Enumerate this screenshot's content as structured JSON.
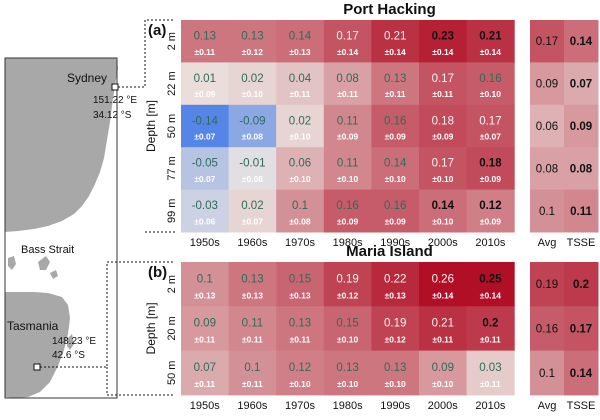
{
  "chart_data": [
    {
      "type": "heatmap",
      "panel_label": "(a)",
      "title": "Port Hacking",
      "ylabel": "Depth [m]",
      "rows": [
        "2 m",
        "22 m",
        "50 m",
        "77 m",
        "99 m"
      ],
      "columns": [
        "1950s",
        "1960s",
        "1970s",
        "1980s",
        "1990s",
        "2000s",
        "2010s"
      ],
      "summary_columns": [
        "Avg",
        "TSSE"
      ],
      "values": [
        [
          "0.13",
          "0.13",
          "0.14",
          "0.17",
          "0.21",
          "0.23",
          "0.21"
        ],
        [
          "0.01",
          "0.02",
          "0.04",
          "0.08",
          "0.13",
          "0.17",
          "0.16"
        ],
        [
          "-0.14",
          "-0.09",
          "0.02",
          "0.11",
          "0.16",
          "0.18",
          "0.17"
        ],
        [
          "-0.05",
          "-0.01",
          "0.06",
          "0.11",
          "0.14",
          "0.17",
          "0.18"
        ],
        [
          "-0.03",
          "0.02",
          "0.1",
          "0.16",
          "0.16",
          "0.14",
          "0.12"
        ]
      ],
      "errors": [
        [
          "±0.11",
          "±0.12",
          "±0.13",
          "±0.14",
          "±0.14",
          "±0.14",
          "±0.14"
        ],
        [
          "±0.09",
          "±0.10",
          "±0.11",
          "±0.11",
          "±0.11",
          "±0.11",
          "±0.10"
        ],
        [
          "±0.07",
          "±0.08",
          "±0.10",
          "±0.09",
          "±0.09",
          "±0.09",
          "±0.07"
        ],
        [
          "±0.07",
          "±0.08",
          "±0.10",
          "±0.10",
          "±0.10",
          "±0.10",
          "±0.09"
        ],
        [
          "±0.06",
          "±0.07",
          "±0.08",
          "±0.09",
          "±0.09",
          "±0.10",
          "±0.09"
        ]
      ],
      "bold": [
        [
          false,
          false,
          false,
          false,
          false,
          true,
          true
        ],
        [
          false,
          false,
          false,
          false,
          false,
          false,
          false
        ],
        [
          false,
          false,
          false,
          false,
          false,
          false,
          false
        ],
        [
          false,
          false,
          false,
          false,
          false,
          false,
          true
        ],
        [
          false,
          false,
          false,
          false,
          false,
          true,
          true
        ]
      ],
      "avg": [
        "0.17",
        "0.09",
        "0.06",
        "0.08",
        "0.1"
      ],
      "tsse": [
        "0.14",
        "0.07",
        "0.09",
        "0.08",
        "0.11"
      ]
    },
    {
      "type": "heatmap",
      "panel_label": "(b)",
      "title": "Maria Island",
      "ylabel": "Depth [m]",
      "rows": [
        "2 m",
        "20 m",
        "50 m"
      ],
      "columns": [
        "1950s",
        "1960s",
        "1970s",
        "1980s",
        "1990s",
        "2000s",
        "2010s"
      ],
      "summary_columns": [
        "Avg",
        "TSSE"
      ],
      "values": [
        [
          "0.1",
          "0.13",
          "0.15",
          "0.19",
          "0.22",
          "0.26",
          "0.25"
        ],
        [
          "0.09",
          "0.11",
          "0.13",
          "0.15",
          "0.19",
          "0.21",
          "0.2"
        ],
        [
          "0.07",
          "0.1",
          "0.12",
          "0.13",
          "0.13",
          "0.09",
          "0.03"
        ]
      ],
      "errors": [
        [
          "±0.13",
          "±0.13",
          "±0.13",
          "±0.12",
          "±0.13",
          "±0.14",
          "±0.14"
        ],
        [
          "±0.11",
          "±0.11",
          "±0.11",
          "±0.10",
          "±0.12",
          "±0.11",
          "±0.11"
        ],
        [
          "±0.11",
          "±0.11",
          "±0.10",
          "±0.10",
          "±0.10",
          "±0.10",
          "±0.11"
        ]
      ],
      "bold": [
        [
          false,
          false,
          false,
          false,
          false,
          false,
          true
        ],
        [
          false,
          false,
          false,
          false,
          false,
          false,
          true
        ],
        [
          false,
          false,
          false,
          false,
          false,
          false,
          false
        ]
      ],
      "avg": [
        "0.19",
        "0.16",
        "0.1"
      ],
      "tsse": [
        "0.2",
        "0.17",
        "0.14"
      ]
    }
  ],
  "map": {
    "sydney_label": "Sydney",
    "sydney_coords": [
      "151.22 °E",
      "34.12 °S"
    ],
    "bass_strait_label": "Bass Strait",
    "tasmania_label": "Tasmania",
    "maria_coords": [
      "148.23 °E",
      "42.6 °S"
    ],
    "land_color": "#a8a8a8"
  },
  "colors": {
    "cold": "#4a7ee6",
    "neutral": "#ece6e2",
    "warm": "#b10f26"
  }
}
